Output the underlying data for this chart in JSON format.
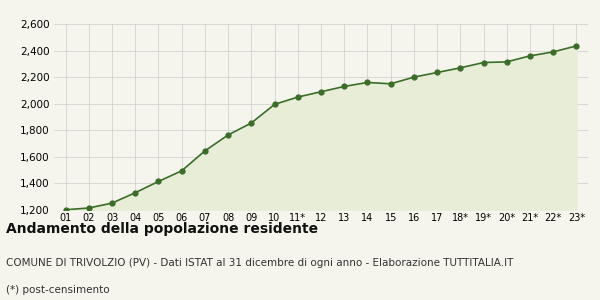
{
  "years": [
    "01",
    "02",
    "03",
    "04",
    "05",
    "06",
    "07",
    "08",
    "09",
    "10",
    "11*",
    "12",
    "13",
    "14",
    "15",
    "16",
    "17",
    "18*",
    "19*",
    "20*",
    "21*",
    "22*",
    "23*"
  ],
  "values": [
    1202,
    1215,
    1252,
    1330,
    1415,
    1495,
    1645,
    1765,
    1855,
    1995,
    2050,
    2090,
    2130,
    2160,
    2150,
    2200,
    2235,
    2270,
    2310,
    2315,
    2360,
    2390,
    2435
  ],
  "line_color": "#3a6e28",
  "fill_color": "#e8edd8",
  "marker_color": "#3a6e28",
  "bg_color": "#f5f5ee",
  "plot_bg_color": "#f5f5ee",
  "grid_color": "#cccccc",
  "ylim": [
    1200,
    2600
  ],
  "yticks": [
    1200,
    1400,
    1600,
    1800,
    2000,
    2200,
    2400,
    2600
  ],
  "title": "Andamento della popolazione residente",
  "subtitle": "COMUNE DI TRIVOLZIO (PV) - Dati ISTAT al 31 dicembre di ogni anno - Elaborazione TUTTITALIA.IT",
  "footnote": "(*) post-censimento",
  "title_fontsize": 10,
  "subtitle_fontsize": 7.5,
  "footnote_fontsize": 7.5
}
